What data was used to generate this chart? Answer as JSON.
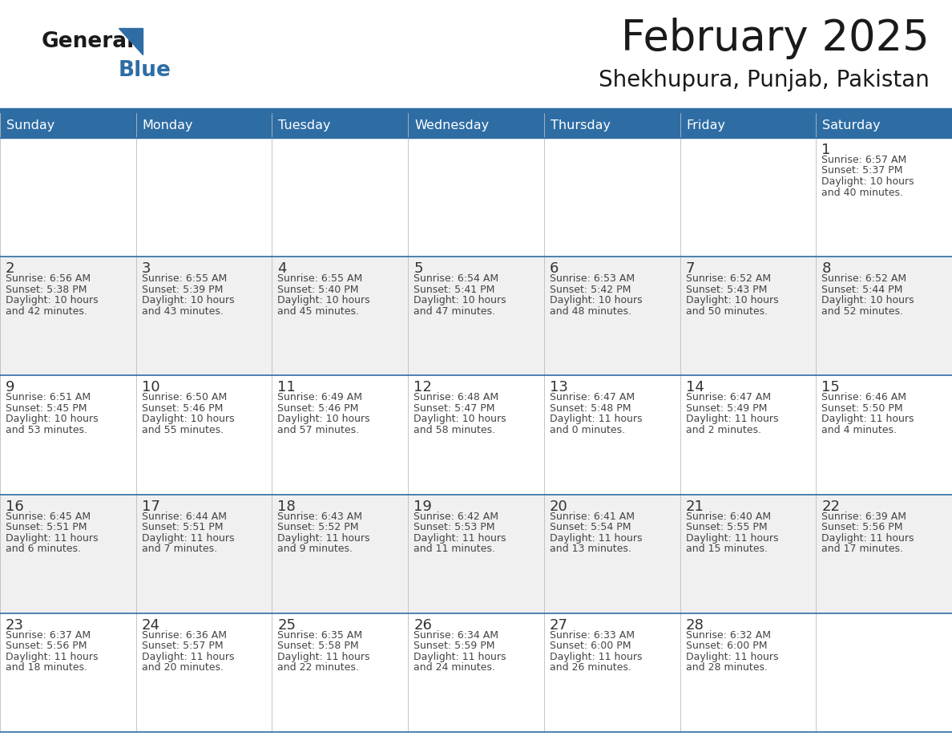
{
  "title": "February 2025",
  "subtitle": "Shekhupura, Punjab, Pakistan",
  "header_bg": "#2E6DA4",
  "header_text_color": "#FFFFFF",
  "cell_bg_odd": "#FFFFFF",
  "cell_bg_even": "#F0F0F0",
  "text_color": "#333333",
  "info_text_color": "#444444",
  "border_color": "#2E6DA4",
  "days_of_week": [
    "Sunday",
    "Monday",
    "Tuesday",
    "Wednesday",
    "Thursday",
    "Friday",
    "Saturday"
  ],
  "calendar_data": [
    [
      null,
      null,
      null,
      null,
      null,
      null,
      {
        "day": "1",
        "sunrise": "6:57 AM",
        "sunset": "5:37 PM",
        "daylight1": "10 hours",
        "daylight2": "and 40 minutes."
      }
    ],
    [
      {
        "day": "2",
        "sunrise": "6:56 AM",
        "sunset": "5:38 PM",
        "daylight1": "10 hours",
        "daylight2": "and 42 minutes."
      },
      {
        "day": "3",
        "sunrise": "6:55 AM",
        "sunset": "5:39 PM",
        "daylight1": "10 hours",
        "daylight2": "and 43 minutes."
      },
      {
        "day": "4",
        "sunrise": "6:55 AM",
        "sunset": "5:40 PM",
        "daylight1": "10 hours",
        "daylight2": "and 45 minutes."
      },
      {
        "day": "5",
        "sunrise": "6:54 AM",
        "sunset": "5:41 PM",
        "daylight1": "10 hours",
        "daylight2": "and 47 minutes."
      },
      {
        "day": "6",
        "sunrise": "6:53 AM",
        "sunset": "5:42 PM",
        "daylight1": "10 hours",
        "daylight2": "and 48 minutes."
      },
      {
        "day": "7",
        "sunrise": "6:52 AM",
        "sunset": "5:43 PM",
        "daylight1": "10 hours",
        "daylight2": "and 50 minutes."
      },
      {
        "day": "8",
        "sunrise": "6:52 AM",
        "sunset": "5:44 PM",
        "daylight1": "10 hours",
        "daylight2": "and 52 minutes."
      }
    ],
    [
      {
        "day": "9",
        "sunrise": "6:51 AM",
        "sunset": "5:45 PM",
        "daylight1": "10 hours",
        "daylight2": "and 53 minutes."
      },
      {
        "day": "10",
        "sunrise": "6:50 AM",
        "sunset": "5:46 PM",
        "daylight1": "10 hours",
        "daylight2": "and 55 minutes."
      },
      {
        "day": "11",
        "sunrise": "6:49 AM",
        "sunset": "5:46 PM",
        "daylight1": "10 hours",
        "daylight2": "and 57 minutes."
      },
      {
        "day": "12",
        "sunrise": "6:48 AM",
        "sunset": "5:47 PM",
        "daylight1": "10 hours",
        "daylight2": "and 58 minutes."
      },
      {
        "day": "13",
        "sunrise": "6:47 AM",
        "sunset": "5:48 PM",
        "daylight1": "11 hours",
        "daylight2": "and 0 minutes."
      },
      {
        "day": "14",
        "sunrise": "6:47 AM",
        "sunset": "5:49 PM",
        "daylight1": "11 hours",
        "daylight2": "and 2 minutes."
      },
      {
        "day": "15",
        "sunrise": "6:46 AM",
        "sunset": "5:50 PM",
        "daylight1": "11 hours",
        "daylight2": "and 4 minutes."
      }
    ],
    [
      {
        "day": "16",
        "sunrise": "6:45 AM",
        "sunset": "5:51 PM",
        "daylight1": "11 hours",
        "daylight2": "and 6 minutes."
      },
      {
        "day": "17",
        "sunrise": "6:44 AM",
        "sunset": "5:51 PM",
        "daylight1": "11 hours",
        "daylight2": "and 7 minutes."
      },
      {
        "day": "18",
        "sunrise": "6:43 AM",
        "sunset": "5:52 PM",
        "daylight1": "11 hours",
        "daylight2": "and 9 minutes."
      },
      {
        "day": "19",
        "sunrise": "6:42 AM",
        "sunset": "5:53 PM",
        "daylight1": "11 hours",
        "daylight2": "and 11 minutes."
      },
      {
        "day": "20",
        "sunrise": "6:41 AM",
        "sunset": "5:54 PM",
        "daylight1": "11 hours",
        "daylight2": "and 13 minutes."
      },
      {
        "day": "21",
        "sunrise": "6:40 AM",
        "sunset": "5:55 PM",
        "daylight1": "11 hours",
        "daylight2": "and 15 minutes."
      },
      {
        "day": "22",
        "sunrise": "6:39 AM",
        "sunset": "5:56 PM",
        "daylight1": "11 hours",
        "daylight2": "and 17 minutes."
      }
    ],
    [
      {
        "day": "23",
        "sunrise": "6:37 AM",
        "sunset": "5:56 PM",
        "daylight1": "11 hours",
        "daylight2": "and 18 minutes."
      },
      {
        "day": "24",
        "sunrise": "6:36 AM",
        "sunset": "5:57 PM",
        "daylight1": "11 hours",
        "daylight2": "and 20 minutes."
      },
      {
        "day": "25",
        "sunrise": "6:35 AM",
        "sunset": "5:58 PM",
        "daylight1": "11 hours",
        "daylight2": "and 22 minutes."
      },
      {
        "day": "26",
        "sunrise": "6:34 AM",
        "sunset": "5:59 PM",
        "daylight1": "11 hours",
        "daylight2": "and 24 minutes."
      },
      {
        "day": "27",
        "sunrise": "6:33 AM",
        "sunset": "6:00 PM",
        "daylight1": "11 hours",
        "daylight2": "and 26 minutes."
      },
      {
        "day": "28",
        "sunrise": "6:32 AM",
        "sunset": "6:00 PM",
        "daylight1": "11 hours",
        "daylight2": "and 28 minutes."
      },
      null
    ]
  ],
  "logo_general_color": "#1a1a1a",
  "logo_blue_color": "#2E6DA4",
  "logo_triangle_color": "#2E6DA4"
}
